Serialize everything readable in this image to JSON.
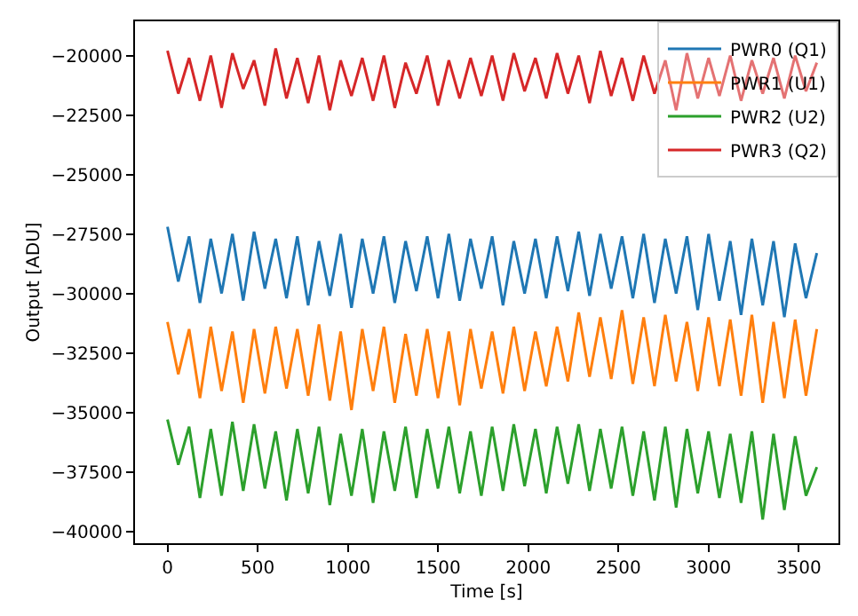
{
  "chart_data": {
    "type": "line",
    "xlabel": "Time [s]",
    "ylabel": "Output [ADU]",
    "x": [
      0,
      60,
      120,
      180,
      240,
      300,
      360,
      420,
      480,
      540,
      600,
      660,
      720,
      780,
      840,
      900,
      960,
      1020,
      1080,
      1140,
      1200,
      1260,
      1320,
      1380,
      1440,
      1500,
      1560,
      1620,
      1680,
      1740,
      1800,
      1860,
      1920,
      1980,
      2040,
      2100,
      2160,
      2220,
      2280,
      2340,
      2400,
      2460,
      2520,
      2580,
      2640,
      2700,
      2760,
      2820,
      2880,
      2940,
      3000,
      3060,
      3120,
      3180,
      3240,
      3300,
      3360,
      3420,
      3480,
      3540,
      3600
    ],
    "series": [
      {
        "name": "PWR0 (Q1)",
        "color": "#1f77b4",
        "values": [
          -27200,
          -29500,
          -27600,
          -30400,
          -27700,
          -30000,
          -27500,
          -30300,
          -27400,
          -29800,
          -27700,
          -30200,
          -27600,
          -30500,
          -27800,
          -30100,
          -27500,
          -30600,
          -27700,
          -30000,
          -27600,
          -30400,
          -27800,
          -29900,
          -27600,
          -30200,
          -27500,
          -30300,
          -27700,
          -29800,
          -27600,
          -30500,
          -27800,
          -30000,
          -27700,
          -30200,
          -27600,
          -29900,
          -27400,
          -30100,
          -27500,
          -29800,
          -27600,
          -30200,
          -27500,
          -30400,
          -27700,
          -30000,
          -27600,
          -30700,
          -27500,
          -30300,
          -27800,
          -30900,
          -27700,
          -30500,
          -27800,
          -31000,
          -27900,
          -30200,
          -28300
        ]
      },
      {
        "name": "PWR1 (U1)",
        "color": "#ff7f0e",
        "values": [
          -31200,
          -33400,
          -31500,
          -34400,
          -31400,
          -34100,
          -31600,
          -34600,
          -31500,
          -34200,
          -31400,
          -34000,
          -31500,
          -34300,
          -31300,
          -34500,
          -31600,
          -34900,
          -31500,
          -34100,
          -31400,
          -34600,
          -31700,
          -34300,
          -31500,
          -34400,
          -31600,
          -34700,
          -31500,
          -34000,
          -31600,
          -34200,
          -31400,
          -34100,
          -31600,
          -33900,
          -31400,
          -33700,
          -30800,
          -33500,
          -31000,
          -33600,
          -30700,
          -33800,
          -31000,
          -33900,
          -30900,
          -33700,
          -31200,
          -34100,
          -31000,
          -33900,
          -31100,
          -34300,
          -30900,
          -34600,
          -31200,
          -34400,
          -31100,
          -34300,
          -31500
        ]
      },
      {
        "name": "PWR2 (U2)",
        "color": "#2ca02c",
        "values": [
          -35300,
          -37200,
          -35600,
          -38600,
          -35700,
          -38500,
          -35400,
          -38300,
          -35500,
          -38200,
          -35800,
          -38700,
          -35700,
          -38400,
          -35600,
          -38900,
          -35900,
          -38500,
          -35700,
          -38800,
          -35800,
          -38300,
          -35600,
          -38600,
          -35700,
          -38200,
          -35600,
          -38400,
          -35800,
          -38500,
          -35600,
          -38300,
          -35500,
          -38100,
          -35700,
          -38400,
          -35600,
          -38000,
          -35500,
          -38300,
          -35700,
          -38200,
          -35600,
          -38500,
          -35800,
          -38700,
          -35600,
          -39000,
          -35700,
          -38400,
          -35800,
          -38600,
          -35900,
          -38800,
          -35800,
          -39500,
          -35900,
          -39100,
          -36000,
          -38500,
          -37300
        ]
      },
      {
        "name": "PWR3 (Q2)",
        "color": "#d62728",
        "values": [
          -19800,
          -21600,
          -20100,
          -21900,
          -20000,
          -22200,
          -19900,
          -21400,
          -20200,
          -22100,
          -19700,
          -21800,
          -20100,
          -22000,
          -20000,
          -22300,
          -20200,
          -21700,
          -20100,
          -21900,
          -20000,
          -22200,
          -20300,
          -21600,
          -20000,
          -22100,
          -20200,
          -21800,
          -20100,
          -21700,
          -20000,
          -21900,
          -19900,
          -21500,
          -20100,
          -21800,
          -19900,
          -21600,
          -20000,
          -22000,
          -19800,
          -21700,
          -20100,
          -21900,
          -20000,
          -21600,
          -20200,
          -22300,
          -19900,
          -21800,
          -20100,
          -21700,
          -20000,
          -21900,
          -20200,
          -21600,
          -20100,
          -21800,
          -20000,
          -21500,
          -20300
        ]
      }
    ],
    "xlim": [
      -180,
      3720
    ],
    "xticks": [
      0,
      500,
      1000,
      1500,
      2000,
      2500,
      3000,
      3500
    ],
    "ylim": [
      -40500,
      -18560
    ],
    "yticks": [
      {
        "value": -40000,
        "label": "−40000"
      },
      {
        "value": -37500,
        "label": "−37500"
      },
      {
        "value": -35000,
        "label": "−35000"
      },
      {
        "value": -32500,
        "label": "−32500"
      },
      {
        "value": -30000,
        "label": "−30000"
      },
      {
        "value": -27500,
        "label": "−27500"
      },
      {
        "value": -25000,
        "label": "−25000"
      },
      {
        "value": -22500,
        "label": "−22500"
      },
      {
        "value": -20000,
        "label": "−20000"
      }
    ],
    "legend": "top right",
    "marker": "none",
    "line_style": "solid"
  }
}
